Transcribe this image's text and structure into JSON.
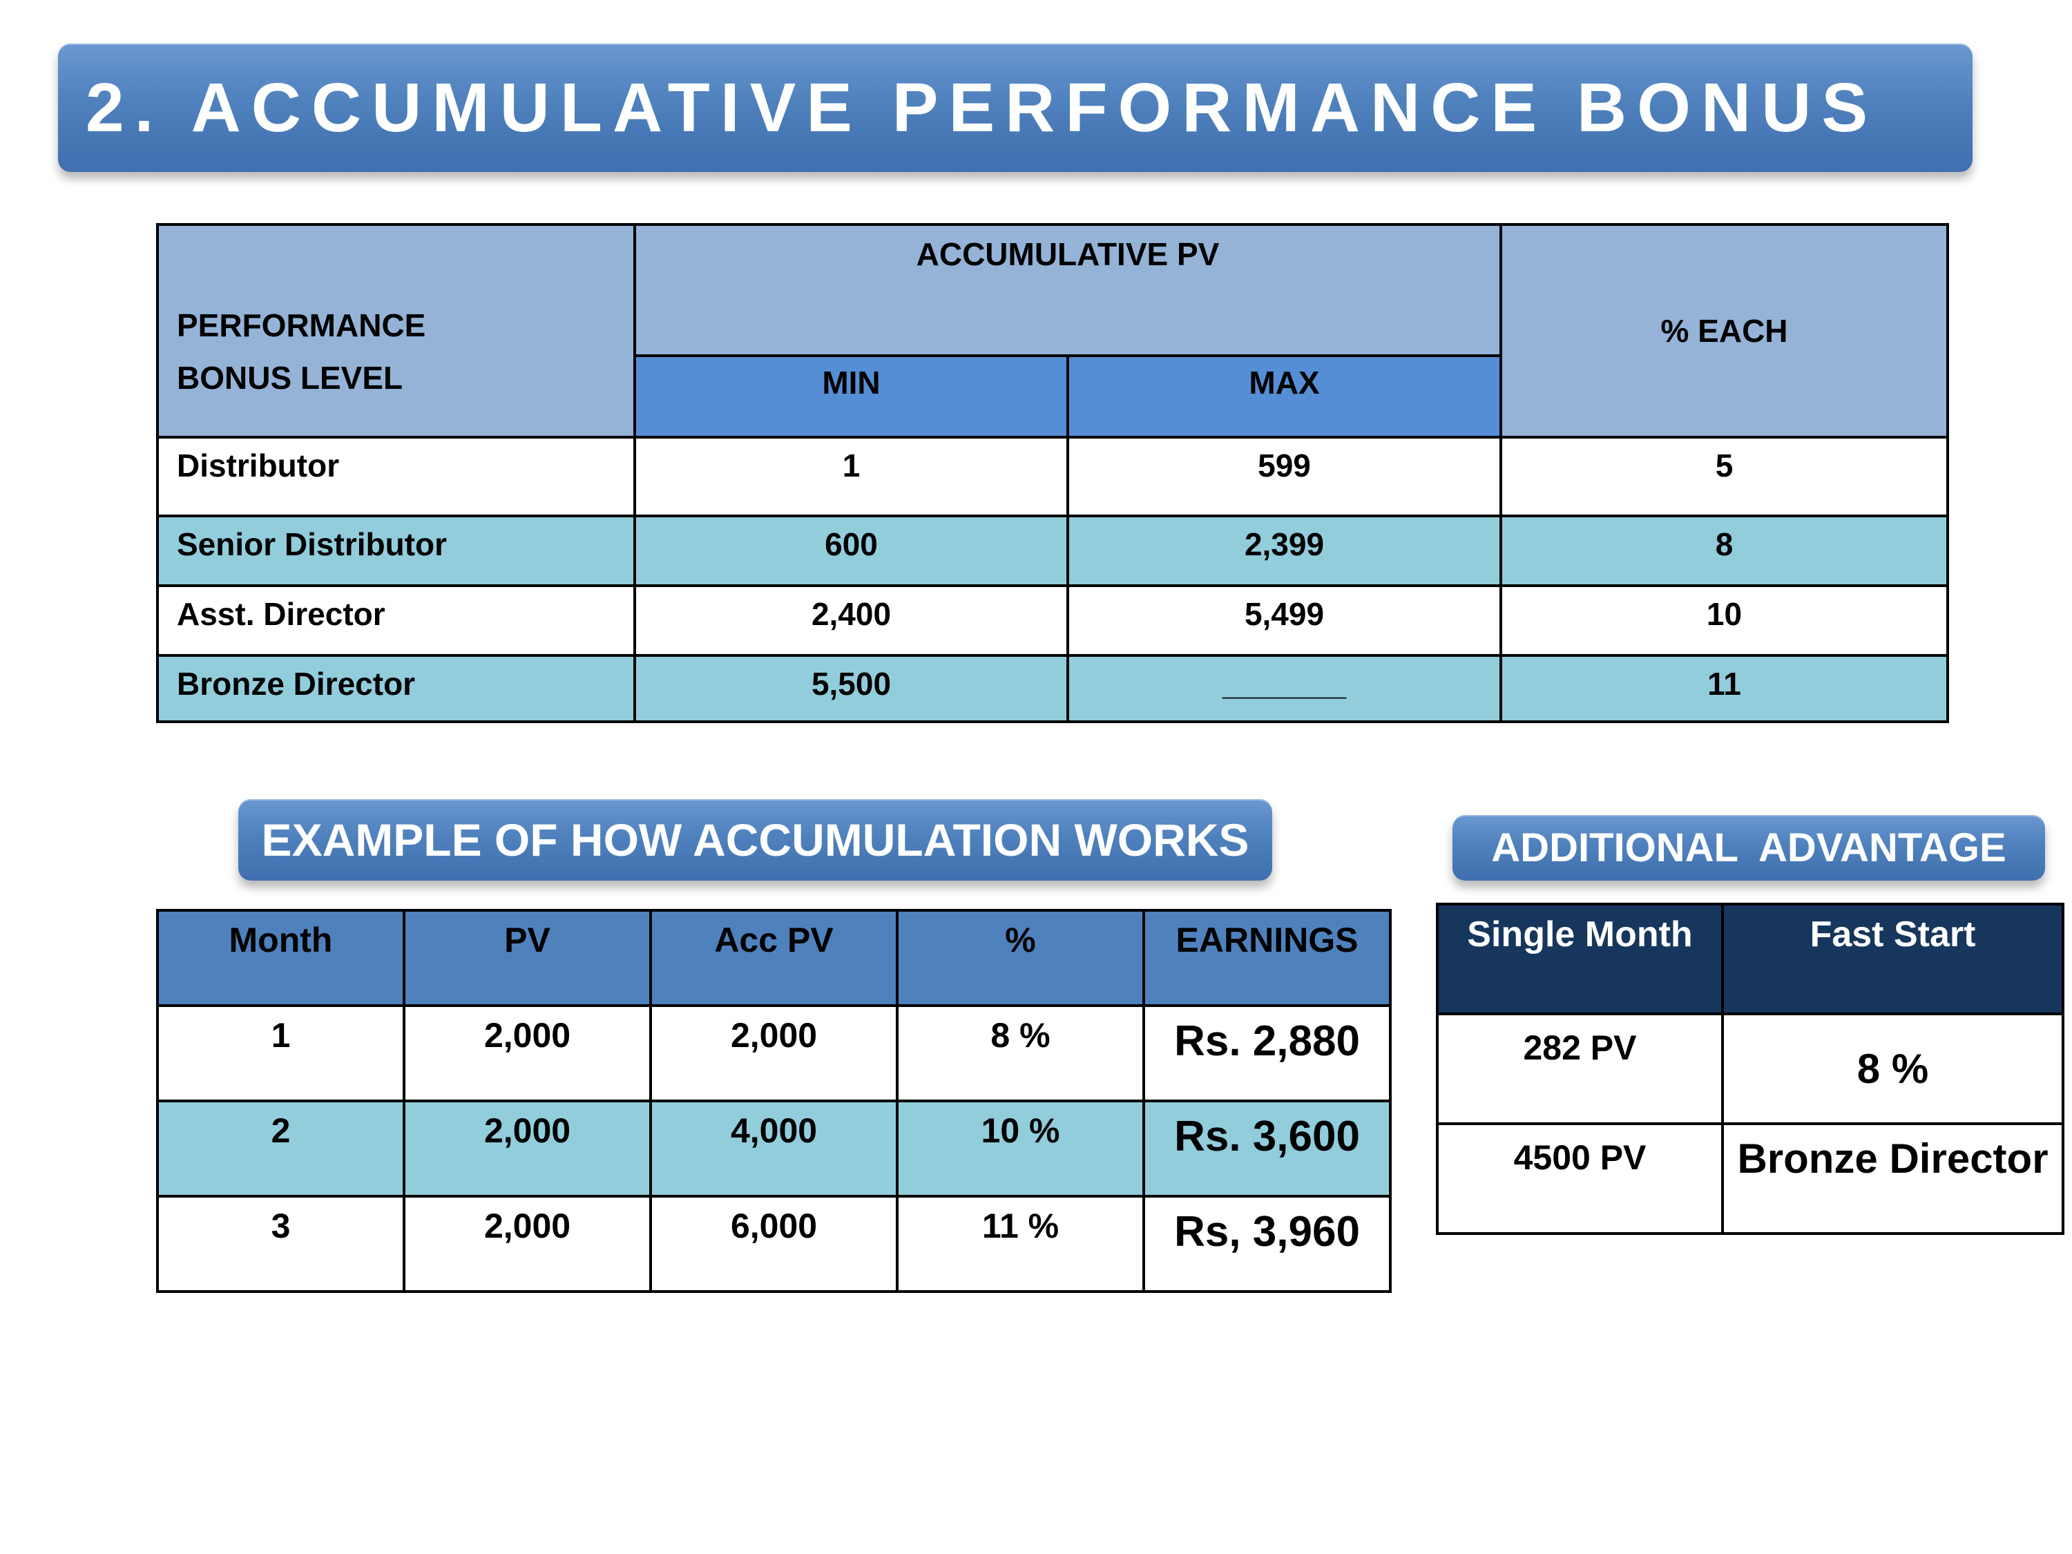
{
  "title": "2. ACCUMULATIVE PERFORMANCE BONUS",
  "bonus_table": {
    "level_header": "PERFORMANCE BONUS LEVEL",
    "acc_pv_header": "ACCUMULATIVE PV",
    "min_header": "MIN",
    "max_header": "MAX",
    "pct_header": "% EACH",
    "rows": [
      {
        "level": "Distributor",
        "min": "1",
        "max": "599",
        "pct": "5"
      },
      {
        "level": "Senior Distributor",
        "min": "600",
        "max": "2,399",
        "pct": "8"
      },
      {
        "level": "Asst. Director",
        "min": "2,400",
        "max": "5,499",
        "pct": "10"
      },
      {
        "level": "Bronze Director",
        "min": "5,500",
        "max": "_______",
        "pct": "11"
      }
    ]
  },
  "example": {
    "banner": "EXAMPLE OF HOW ACCUMULATION WORKS",
    "headers": [
      "Month",
      "PV",
      "Acc PV",
      "%",
      "EARNINGS"
    ],
    "rows": [
      {
        "month": "1",
        "pv": "2,000",
        "acc_pv": "2,000",
        "pct": "8 %",
        "earnings": "Rs. 2,880"
      },
      {
        "month": "2",
        "pv": "2,000",
        "acc_pv": "4,000",
        "pct": "10 %",
        "earnings": "Rs. 3,600"
      },
      {
        "month": "3",
        "pv": "2,000",
        "acc_pv": "6,000",
        "pct": "11 %",
        "earnings": "Rs, 3,960"
      }
    ]
  },
  "advantage": {
    "banner": "ADDITIONAL  ADVANTAGE",
    "headers": [
      "Single Month",
      "Fast Start"
    ],
    "rows": [
      {
        "single_month": "282 PV",
        "fast_start": "8 %"
      },
      {
        "single_month": "4500 PV",
        "fast_start": "Bronze Director"
      }
    ]
  },
  "colors": {
    "banner_blue": "#4f81bd",
    "header_light_blue": "#95b3d7",
    "header_mid_blue": "#558ed5",
    "row_teal": "#92cddc",
    "header_navy": "#17365d"
  }
}
